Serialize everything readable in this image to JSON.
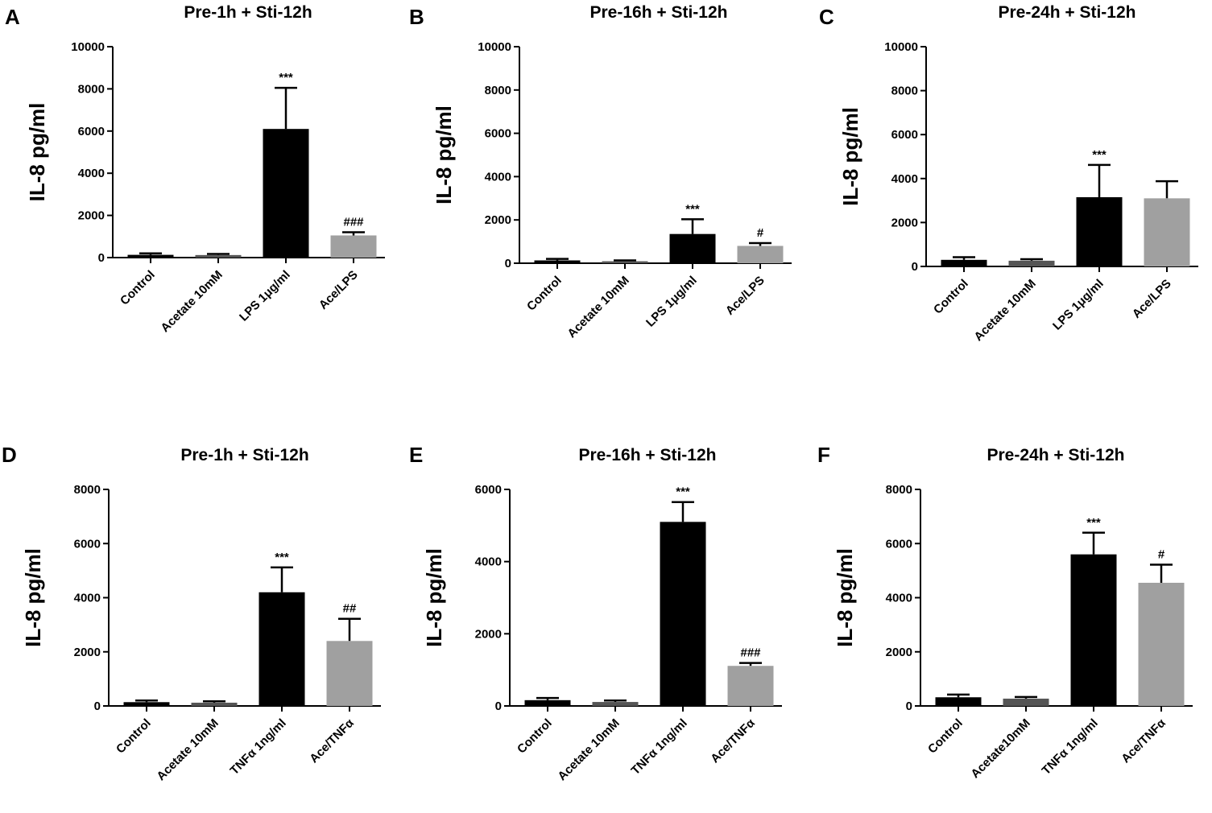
{
  "chart_data": [
    {
      "type": "bar",
      "panel": "A",
      "title": "Pre-1h + Sti-12h",
      "xlabel": "",
      "ylabel": "IL-8 pg/ml",
      "ylim": [
        0,
        10000
      ],
      "yticks": [
        0,
        2000,
        4000,
        6000,
        8000,
        10000
      ],
      "categories": [
        "Control",
        "Acetate 10mM",
        "LPS 1μg/ml",
        "Ace/LPS"
      ],
      "values": [
        130,
        120,
        6100,
        1050
      ],
      "errors": [
        70,
        50,
        1950,
        150
      ],
      "colors": [
        "#000000",
        "#555555",
        "#000000",
        "#a0a0a0"
      ],
      "annotations": [
        "",
        "",
        "***",
        "###"
      ]
    },
    {
      "type": "bar",
      "panel": "B",
      "title": "Pre-16h + Sti-12h",
      "xlabel": "",
      "ylabel": "IL-8 pg/ml",
      "ylim": [
        0,
        10000
      ],
      "yticks": [
        0,
        2000,
        4000,
        6000,
        8000,
        10000
      ],
      "categories": [
        "Control",
        "Acetate 10mM",
        "LPS 1μg/ml",
        "Ace/LPS"
      ],
      "values": [
        130,
        90,
        1350,
        800
      ],
      "errors": [
        70,
        40,
        680,
        130
      ],
      "colors": [
        "#000000",
        "#555555",
        "#000000",
        "#a0a0a0"
      ],
      "annotations": [
        "",
        "",
        "***",
        "#"
      ]
    },
    {
      "type": "bar",
      "panel": "C",
      "title": "Pre-24h + Sti-12h",
      "xlabel": "",
      "ylabel": "IL-8 pg/ml",
      "ylim": [
        0,
        10000
      ],
      "yticks": [
        0,
        2000,
        4000,
        6000,
        8000,
        10000
      ],
      "categories": [
        "Control",
        "Acetate 10mM",
        "LPS 1μg/ml",
        "Ace/LPS"
      ],
      "values": [
        300,
        260,
        3150,
        3100
      ],
      "errors": [
        120,
        70,
        1470,
        780
      ],
      "colors": [
        "#000000",
        "#555555",
        "#000000",
        "#a0a0a0"
      ],
      "annotations": [
        "",
        "",
        "***",
        ""
      ]
    },
    {
      "type": "bar",
      "panel": "D",
      "title": "Pre-1h + Sti-12h",
      "xlabel": "",
      "ylabel": "IL-8 pg/ml",
      "ylim": [
        0,
        8000
      ],
      "yticks": [
        0,
        2000,
        4000,
        6000,
        8000
      ],
      "categories": [
        "Control",
        "Acetate 10mM",
        "TNFα 1ng/ml",
        "Ace/TNFα"
      ],
      "values": [
        140,
        120,
        4200,
        2400
      ],
      "errors": [
        60,
        50,
        920,
        820
      ],
      "colors": [
        "#000000",
        "#555555",
        "#000000",
        "#a0a0a0"
      ],
      "annotations": [
        "",
        "",
        "***",
        "##"
      ]
    },
    {
      "type": "bar",
      "panel": "E",
      "title": "Pre-16h + Sti-12h",
      "xlabel": "",
      "ylabel": "IL-8 pg/ml",
      "ylim": [
        0,
        6000
      ],
      "yticks": [
        0,
        2000,
        4000,
        6000
      ],
      "categories": [
        "Control",
        "Acetate 10mM",
        "TNFα 1ng/ml",
        "Ace/TNFα"
      ],
      "values": [
        160,
        110,
        5100,
        1110
      ],
      "errors": [
        60,
        40,
        550,
        80
      ],
      "colors": [
        "#000000",
        "#555555",
        "#000000",
        "#a0a0a0"
      ],
      "annotations": [
        "",
        "",
        "***",
        "###"
      ]
    },
    {
      "type": "bar",
      "panel": "F",
      "title": "Pre-24h + Sti-12h",
      "xlabel": "",
      "ylabel": "IL-8 pg/ml",
      "ylim": [
        0,
        8000
      ],
      "yticks": [
        0,
        2000,
        4000,
        6000,
        8000
      ],
      "categories": [
        "Control",
        "Acetate10mM",
        "TNFα 1ng/ml",
        "Ace/TNFα"
      ],
      "values": [
        320,
        270,
        5600,
        4550
      ],
      "errors": [
        100,
        60,
        800,
        670
      ],
      "colors": [
        "#000000",
        "#555555",
        "#000000",
        "#a0a0a0"
      ],
      "annotations": [
        "",
        "",
        "***",
        "#"
      ]
    }
  ]
}
